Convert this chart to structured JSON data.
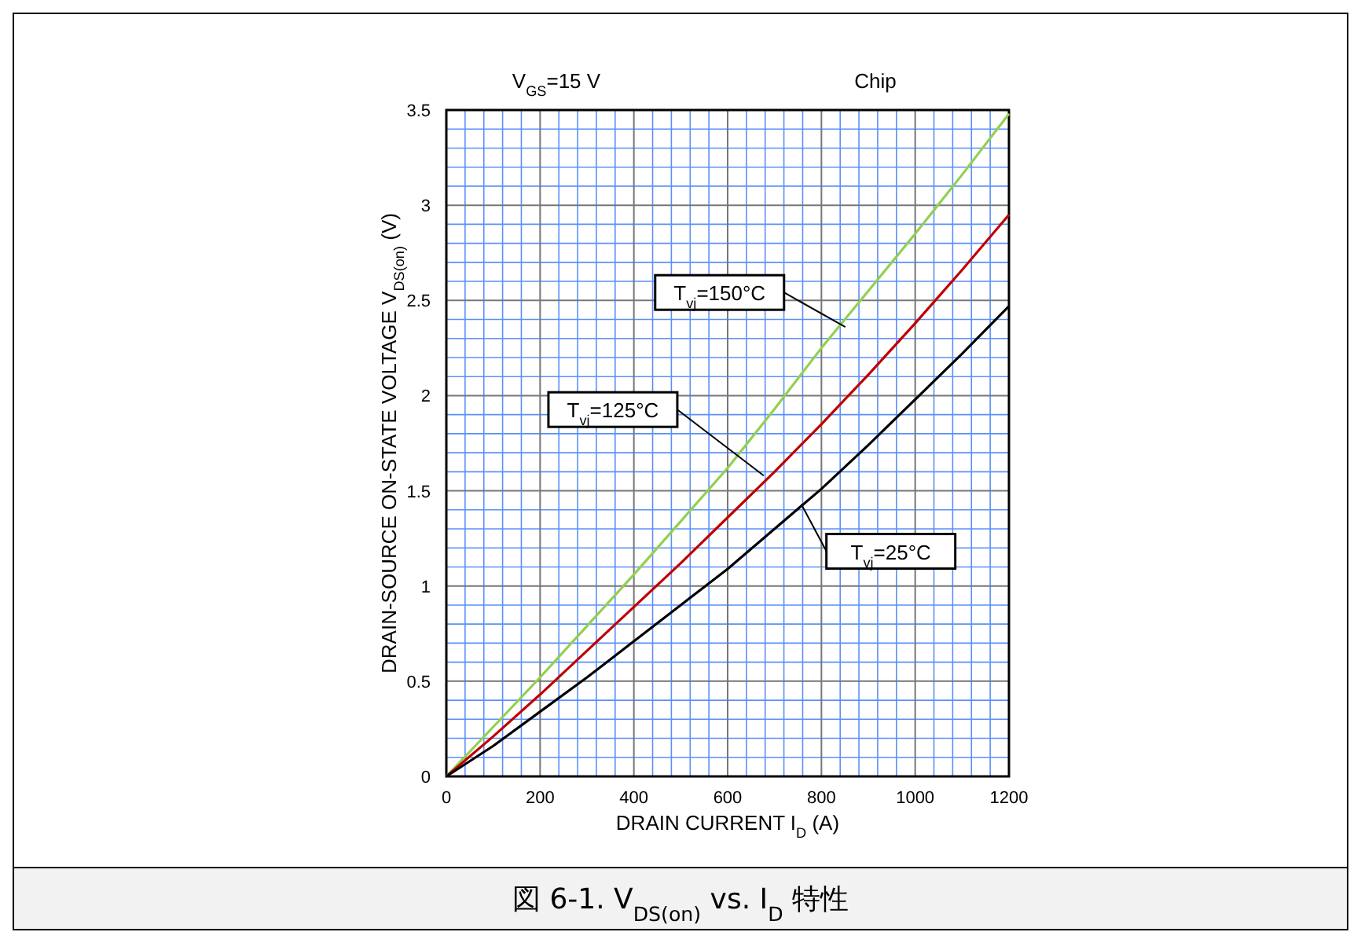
{
  "chart_data": {
    "type": "line",
    "xlabel": "DRAIN CURRENT   I$_{D}$   (A)",
    "ylabel": "DRAIN-SOURCE ON-STATE VOLTAGE   V$_{DS(on)}$ (V)",
    "x": [
      0,
      100,
      200,
      300,
      400,
      500,
      600,
      700,
      800,
      900,
      1000,
      1100,
      1200
    ],
    "series": [
      {
        "color": "#92d050",
        "values": [
          0,
          0.26,
          0.52,
          0.79,
          1.06,
          1.34,
          1.62,
          1.93,
          2.25,
          2.55,
          2.85,
          3.16,
          3.48
        ]
      },
      {
        "color": "#c00000",
        "values": [
          0,
          0.21,
          0.43,
          0.66,
          0.89,
          1.12,
          1.36,
          1.6,
          1.85,
          2.11,
          2.38,
          2.66,
          2.95
        ]
      },
      {
        "color": "#000000",
        "values": [
          0,
          0.16,
          0.34,
          0.52,
          0.71,
          0.9,
          1.09,
          1.3,
          1.51,
          1.74,
          1.98,
          2.22,
          2.47
        ]
      }
    ],
    "xlim": [
      0,
      1200
    ],
    "xticks": [
      0,
      {
        "value": 40,
        "label": null
      },
      {
        "value": 80,
        "label": null
      },
      {
        "value": 120,
        "label": null
      },
      {
        "value": 160,
        "label": null
      },
      200,
      {
        "value": 240,
        "label": null
      },
      {
        "value": 280,
        "label": null
      },
      {
        "value": 320,
        "label": null
      },
      {
        "value": 360,
        "label": null
      },
      400,
      {
        "value": 440,
        "label": null
      },
      {
        "value": 480,
        "label": null
      },
      {
        "value": 520,
        "label": null
      },
      {
        "value": 560,
        "label": null
      },
      600,
      {
        "value": 640,
        "label": null
      },
      {
        "value": 680,
        "label": null
      },
      {
        "value": 720,
        "label": null
      },
      {
        "value": 760,
        "label": null
      },
      800,
      {
        "value": 840,
        "label": null
      },
      {
        "value": 880,
        "label": null
      },
      {
        "value": 920,
        "label": null
      },
      {
        "value": 960,
        "label": null
      },
      1000,
      {
        "value": 1040,
        "label": null
      },
      {
        "value": 1080,
        "label": null
      },
      {
        "value": 1120,
        "label": null
      },
      {
        "value": 1160,
        "label": null
      },
      1200
    ],
    "ylim": [
      0,
      3.5
    ],
    "yticks": [
      0,
      {
        "value": 0.1,
        "label": null
      },
      {
        "value": 0.2,
        "label": null
      },
      {
        "value": 0.3,
        "label": null
      },
      {
        "value": 0.4,
        "label": null
      },
      0.5,
      {
        "value": 0.6,
        "label": null
      },
      {
        "value": 0.7,
        "label": null
      },
      {
        "value": 0.8,
        "label": null
      },
      {
        "value": 0.9,
        "label": null
      },
      1,
      {
        "value": 1.1,
        "label": null
      },
      {
        "value": 1.2,
        "label": null
      },
      {
        "value": 1.3,
        "label": null
      },
      {
        "value": 1.4,
        "label": null
      },
      1.5,
      {
        "value": 1.6,
        "label": null
      },
      {
        "value": 1.7,
        "label": null
      },
      {
        "value": 1.8,
        "label": null
      },
      {
        "value": 1.9,
        "label": null
      },
      2,
      {
        "value": 2.1,
        "label": null
      },
      {
        "value": 2.2,
        "label": null
      },
      {
        "value": 2.3,
        "label": null
      },
      {
        "value": 2.4,
        "label": null
      },
      2.5,
      {
        "value": 2.6,
        "label": null
      },
      {
        "value": 2.7,
        "label": null
      },
      {
        "value": 2.8,
        "label": null
      },
      {
        "value": 2.9,
        "label": null
      },
      3,
      {
        "value": 3.1,
        "label": null
      },
      {
        "value": 3.2,
        "label": null
      },
      {
        "value": 3.3,
        "label": null
      },
      {
        "value": 3.4,
        "label": null
      },
      3.5
    ],
    "grid": true,
    "annotations": [
      {
        "text": "T$_{vj}$=150°C",
        "x": 851,
        "y": 2.36
      },
      {
        "text": "T$_{vj}$=125°C",
        "x": 677,
        "y": 1.58
      },
      {
        "text": "T$_{vj}$=25°C",
        "x": 757,
        "y": 1.43
      },
      "V$_{GS}$=15 V",
      "Chip",
      "図 6-1. V$_{DS(on)}$ vs. I$_{D}$ 特性"
    ]
  }
}
